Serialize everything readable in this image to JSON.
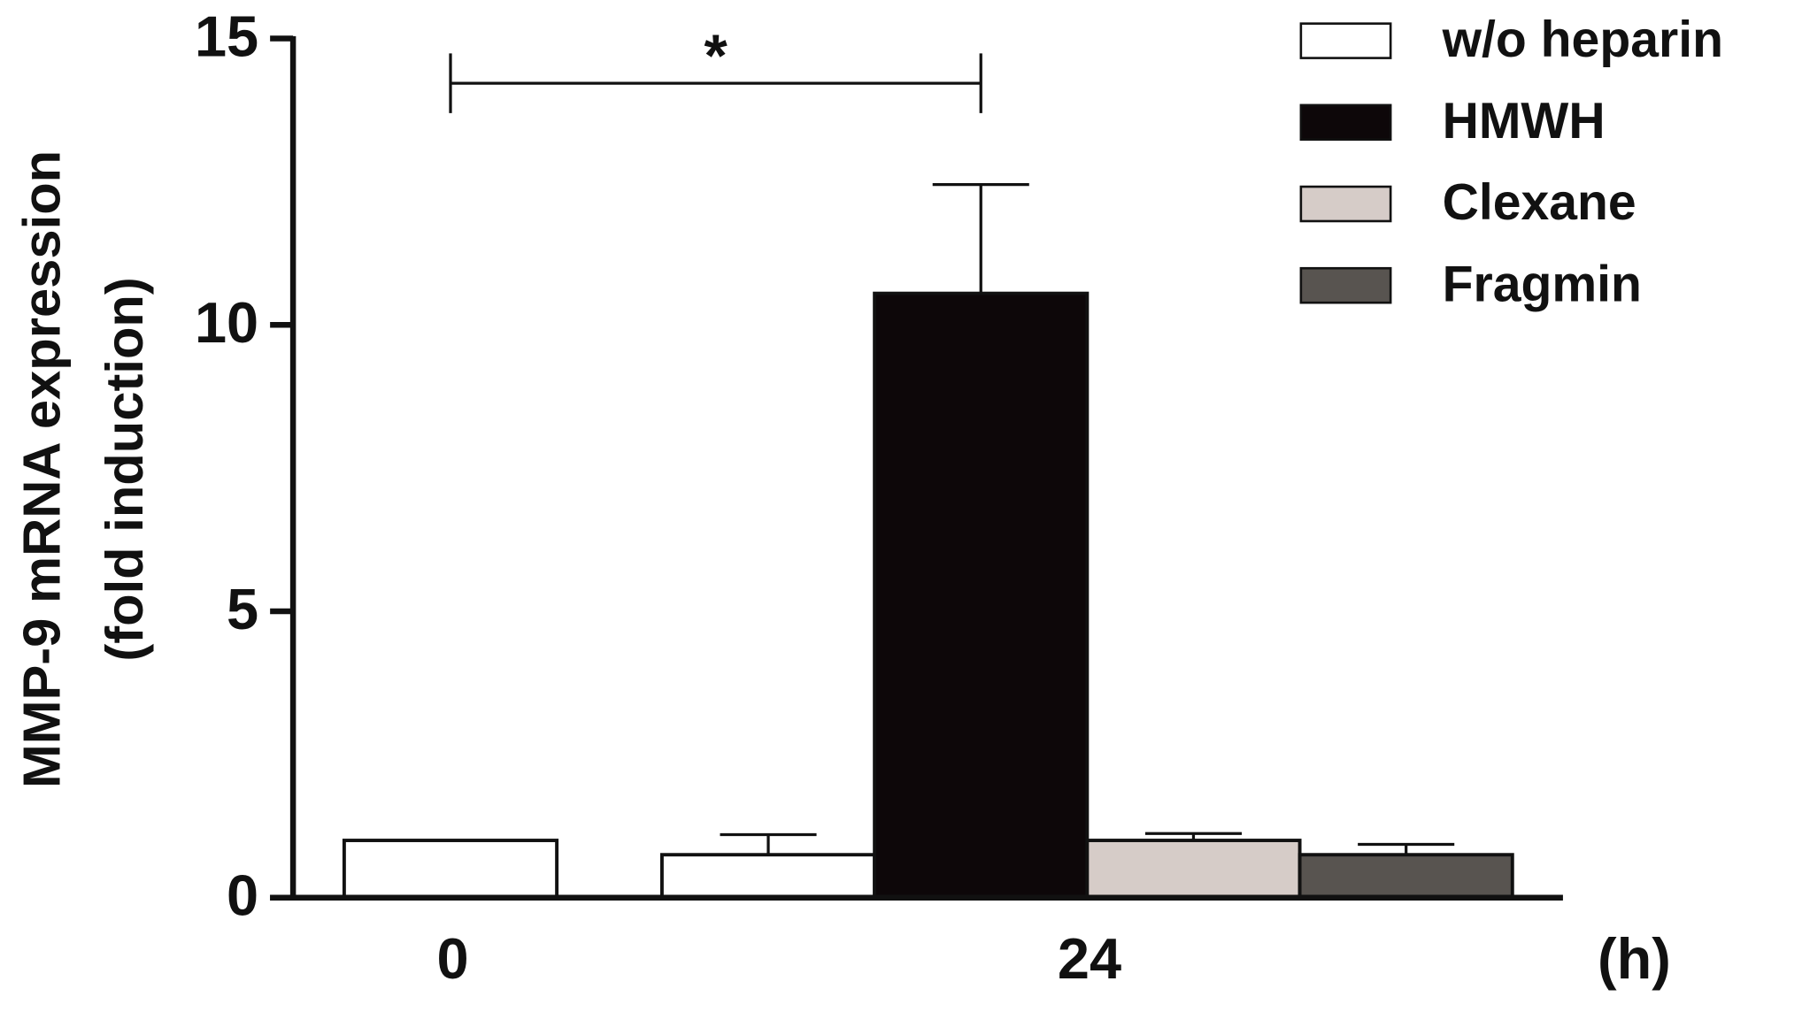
{
  "chart_data": {
    "type": "bar",
    "y_label": [
      "MMP-9 mRNA expression",
      "(fold induction)"
    ],
    "x_label": "(h)",
    "categories": [
      "0",
      "24"
    ],
    "series": [
      {
        "name": "w/o heparin",
        "color": "#ffffff",
        "values": [
          1,
          0.75
        ],
        "errors": [
          null,
          0.35
        ]
      },
      {
        "name": "HMWH",
        "color": "#0d0709",
        "values": [
          null,
          10.55
        ],
        "errors": [
          null,
          1.9
        ]
      },
      {
        "name": "Clexane",
        "color": "#d6ccc8",
        "values": [
          null,
          1.0
        ],
        "errors": [
          null,
          0.12
        ]
      },
      {
        "name": "Fragmin",
        "color": "#585450",
        "values": [
          null,
          0.75
        ],
        "errors": [
          null,
          0.18
        ]
      }
    ],
    "annotation": "*",
    "ylim": [
      0,
      15
    ],
    "yticks": [
      0,
      5,
      10,
      15
    ],
    "grid": false,
    "legend": "top-right"
  }
}
